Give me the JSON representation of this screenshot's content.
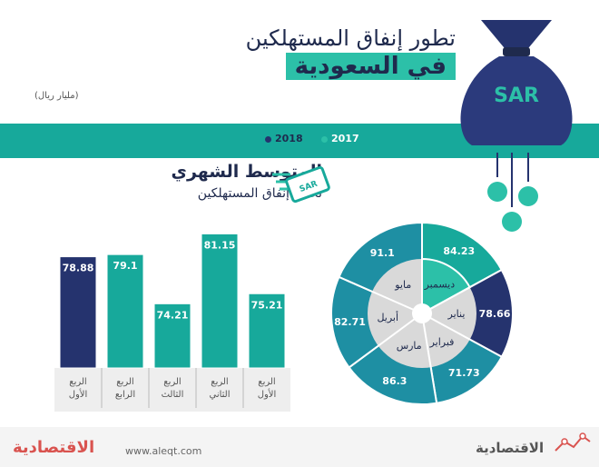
{
  "header": {
    "title_line1": "تطور إنفاق المستهلكين",
    "title_line2": "في السعودية",
    "unit": "(مليار ريال)",
    "currency_label": "SAR"
  },
  "legend": {
    "items": [
      {
        "label": "2017",
        "color": "#17a99b"
      },
      {
        "label": "2018",
        "color": "#25336e"
      }
    ]
  },
  "bar_section": {
    "title": "المتوسط الشهري",
    "subtitle": "لحجم إنفاق المستهلكين"
  },
  "footer": {
    "site": "www.aleqt.com",
    "brand": "الاقتصادية",
    "brand_left": "الاقتصادية"
  },
  "chart_data": [
    {
      "type": "bar",
      "categories": [
        "الربع الأول",
        "الربع الرابع",
        "الربع الثالث",
        "الربع الثاني",
        "الربع الأول"
      ],
      "category_lines": [
        [
          "الربع",
          "الأول"
        ],
        [
          "الربع",
          "الرابع"
        ],
        [
          "الربع",
          "الثالث"
        ],
        [
          "الربع",
          "الثاني"
        ],
        [
          "الربع",
          "الأول"
        ]
      ],
      "values": [
        78.88,
        79.1,
        74.21,
        81.15,
        75.21
      ],
      "value_labels": [
        "78.88",
        "79.1",
        "74.21",
        "81.15",
        "75.21"
      ],
      "series_year": [
        "2018",
        "2017",
        "2017",
        "2017",
        "2017"
      ],
      "colors": [
        "#25336e",
        "#17a99b",
        "#17a99b",
        "#17a99b",
        "#17a99b"
      ],
      "ylim": [
        70,
        82
      ]
    },
    {
      "type": "pie",
      "labels": [
        "ديسمبر",
        "يناير",
        "فبراير",
        "مارس",
        "أبريل",
        "مايو"
      ],
      "values": [
        84.23,
        78.66,
        71.73,
        86.3,
        82.71,
        91.1
      ],
      "value_labels": [
        "84.23",
        "78.66",
        "71.73",
        "86.3",
        "82.71",
        "91.1"
      ],
      "series_year": [
        "2017",
        "2018",
        "2018",
        "2018",
        "2018",
        "2018"
      ],
      "colors": [
        "#17a99b",
        "#25336e",
        "#1e8fa3",
        "#1e8fa3",
        "#1e8fa3",
        "#1e8fa3"
      ]
    }
  ]
}
